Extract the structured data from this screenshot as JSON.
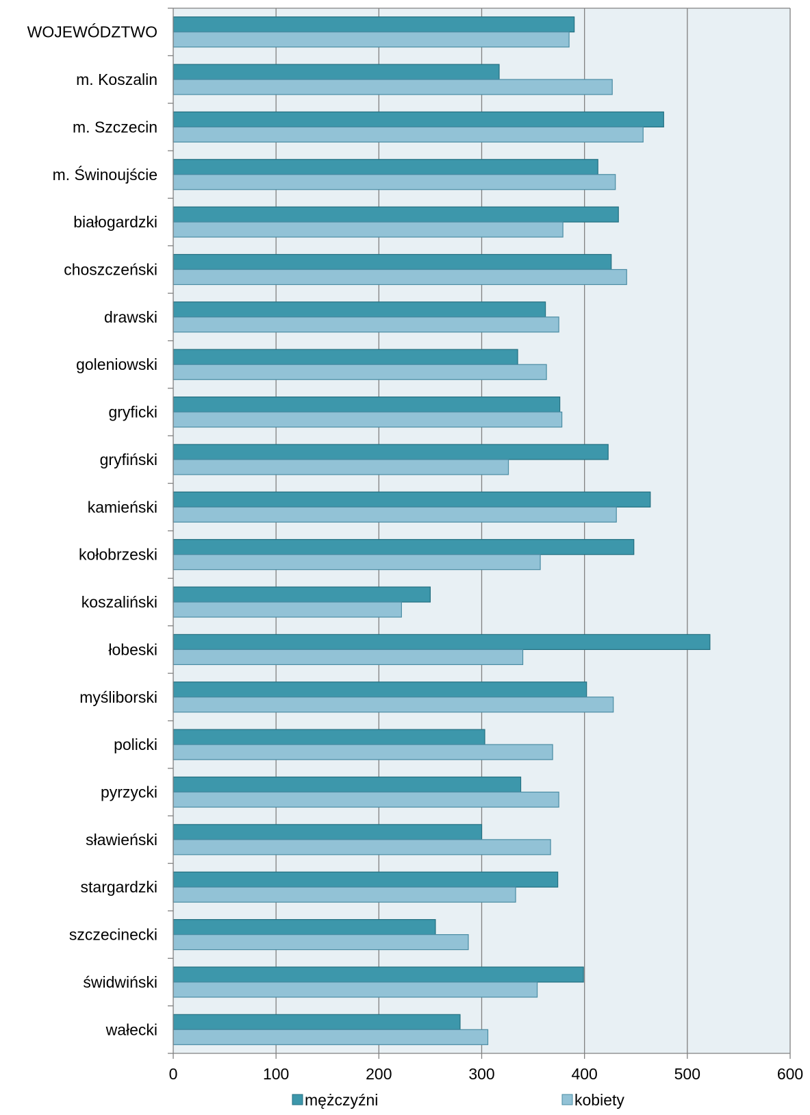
{
  "chart_data": {
    "type": "bar",
    "orientation": "horizontal",
    "categories": [
      "WOJEWÓDZTWO",
      "m. Koszalin",
      "m. Szczecin",
      "m. Świnoujście",
      "białogardzki",
      "choszczeński",
      "drawski",
      "goleniowski",
      "gryficki",
      "gryfiński",
      "kamieński",
      "kołobrzeski",
      "koszaliński",
      "łobeski",
      "myśliborski",
      "policki",
      "pyrzycki",
      "sławieński",
      "stargardzki",
      "szczecinecki",
      "świdwiński",
      "wałecki"
    ],
    "series": [
      {
        "name": "mężczyźni",
        "color": "#3d97ab",
        "values": [
          390,
          317,
          477,
          413,
          433,
          426,
          362,
          335,
          376,
          423,
          464,
          448,
          250,
          522,
          402,
          303,
          338,
          300,
          374,
          255,
          399,
          279
        ]
      },
      {
        "name": "kobiety",
        "color": "#92c2d6",
        "values": [
          385,
          427,
          457,
          430,
          379,
          441,
          375,
          363,
          378,
          326,
          431,
          357,
          222,
          340,
          428,
          369,
          375,
          367,
          333,
          287,
          354,
          306
        ]
      }
    ],
    "xlim": [
      0,
      600
    ],
    "xticks": [
      "0",
      "100",
      "200",
      "300",
      "400",
      "500",
      "600"
    ],
    "grid": true,
    "legend_position": "bottom",
    "plot_background": "#e8f0f4",
    "gridline_color": "#808080"
  }
}
